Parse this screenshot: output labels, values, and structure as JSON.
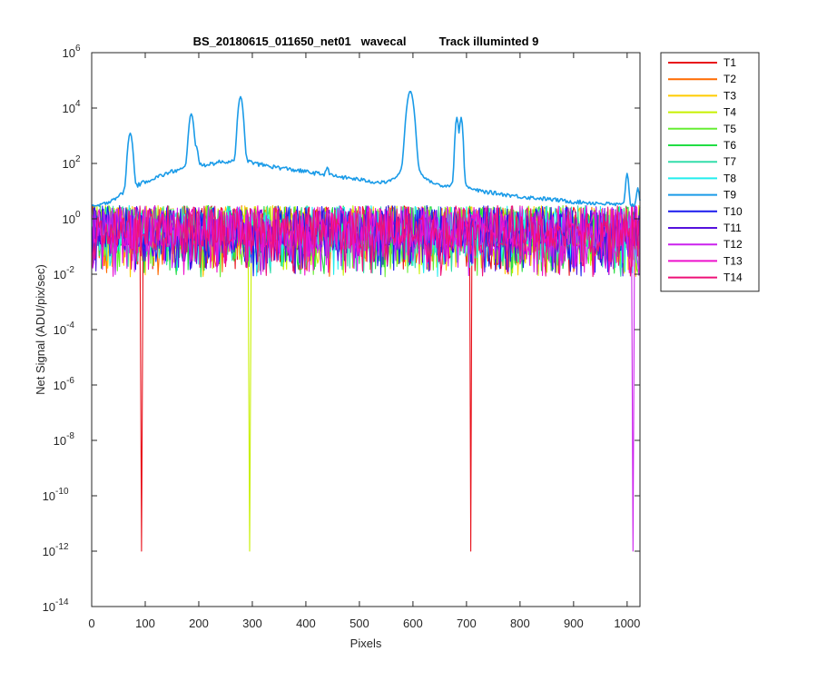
{
  "chart_data": {
    "type": "line",
    "title": "BS_20180615_011650_net01   wavecal          Track illuminted 9",
    "xlabel": "Pixels",
    "ylabel": "Net Signal (ADU/pix/sec)",
    "xlim": [
      0,
      1024
    ],
    "ylim": [
      1e-14,
      1000000.0
    ],
    "yscale": "log",
    "grid": false,
    "legend_position": "outside-top-right",
    "x_ticks": [
      0,
      100,
      200,
      300,
      400,
      500,
      600,
      700,
      800,
      900,
      1000
    ],
    "x_tick_labels": [
      "0",
      "100",
      "200",
      "300",
      "400",
      "500",
      "600",
      "700",
      "800",
      "900",
      "1000"
    ],
    "y_tick_exponents": [
      -14,
      -12,
      -10,
      -8,
      -6,
      -4,
      -2,
      0,
      2,
      4,
      6
    ],
    "y_tick_labels": [
      "10",
      "10",
      "10",
      "10",
      "10",
      "10",
      "10",
      "10",
      "10",
      "10",
      "10"
    ],
    "y_tick_superscripts": [
      "-14",
      "-12",
      "-10",
      "-8",
      "-6",
      "-4",
      "-2",
      "0",
      "2",
      "4",
      "6"
    ],
    "noise_band": {
      "typical_min": 0.1,
      "typical_max": 3,
      "dip_min": 0.008
    },
    "series": [
      {
        "name": "T1",
        "color": "#e8101a",
        "deep_dips": [
          [
            93,
            1e-12
          ],
          [
            708,
            1e-12
          ]
        ]
      },
      {
        "name": "T2",
        "color": "#ff6a00",
        "deep_dips": []
      },
      {
        "name": "T3",
        "color": "#ffcc00",
        "deep_dips": []
      },
      {
        "name": "T4",
        "color": "#c8f000",
        "deep_dips": [
          [
            295,
            1e-12
          ]
        ]
      },
      {
        "name": "T5",
        "color": "#66ee33",
        "deep_dips": []
      },
      {
        "name": "T6",
        "color": "#22dd44",
        "deep_dips": []
      },
      {
        "name": "T7",
        "color": "#33ddaa",
        "deep_dips": []
      },
      {
        "name": "T8",
        "color": "#22eeee",
        "deep_dips": []
      },
      {
        "name": "T9",
        "color": "#1a9be8",
        "baseline": [
          [
            0,
            2.5
          ],
          [
            20,
            3
          ],
          [
            50,
            6
          ],
          [
            100,
            22
          ],
          [
            150,
            50
          ],
          [
            200,
            80
          ],
          [
            240,
            110
          ],
          [
            290,
            105
          ],
          [
            350,
            70
          ],
          [
            400,
            50
          ],
          [
            450,
            35
          ],
          [
            500,
            25
          ],
          [
            550,
            15
          ],
          [
            600,
            15
          ],
          [
            650,
            12
          ],
          [
            700,
            10
          ],
          [
            750,
            8
          ],
          [
            800,
            6
          ],
          [
            850,
            5
          ],
          [
            900,
            4
          ],
          [
            950,
            3.5
          ],
          [
            1000,
            3
          ],
          [
            1024,
            3
          ]
        ],
        "peaks": [
          [
            72,
            1200,
            3
          ],
          [
            186,
            6000,
            3
          ],
          [
            196,
            300,
            2
          ],
          [
            278,
            25000,
            3
          ],
          [
            440,
            40,
            2
          ],
          [
            595,
            40000,
            4
          ],
          [
            682,
            4500,
            2
          ],
          [
            690,
            4500,
            2
          ],
          [
            1000,
            40,
            2
          ],
          [
            1020,
            10,
            2
          ]
        ]
      },
      {
        "name": "T10",
        "color": "#1a1aee",
        "deep_dips": []
      },
      {
        "name": "T11",
        "color": "#5511dd",
        "deep_dips": []
      },
      {
        "name": "T12",
        "color": "#cc22ee",
        "deep_dips": [
          [
            1011,
            1e-12
          ]
        ]
      },
      {
        "name": "T13",
        "color": "#ee11cc",
        "deep_dips": []
      },
      {
        "name": "T14",
        "color": "#ee1177",
        "deep_dips": []
      }
    ]
  }
}
